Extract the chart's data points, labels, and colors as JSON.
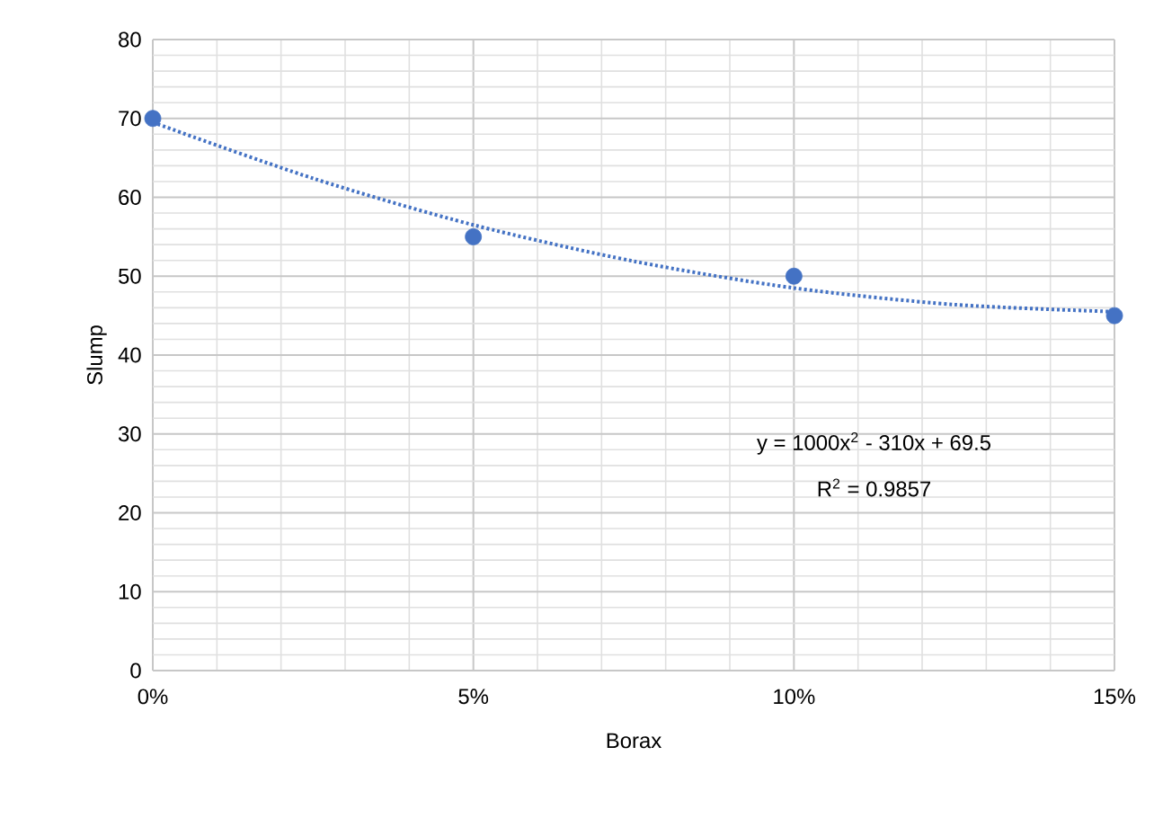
{
  "chart_data": {
    "type": "scatter",
    "xlabel": "Borax",
    "ylabel": "Slump",
    "x": [
      0,
      0.05,
      0.1,
      0.15
    ],
    "series": [
      {
        "type": "scatter",
        "color": "#4472c4",
        "marker": "circle",
        "values": [
          70,
          55,
          50,
          45
        ]
      },
      {
        "type": "line",
        "color": "#4472c4",
        "marker": "none",
        "line_style": "dotted",
        "x": [
          0,
          0.025,
          0.05,
          0.075,
          0.1,
          0.125,
          0.15
        ],
        "values": [
          69.5,
          62.4,
          56.5,
          51.9,
          48.5,
          46.4,
          45.5
        ]
      }
    ],
    "xlim": [
      0,
      0.15
    ],
    "ylim": [
      0,
      80
    ],
    "xticks": [
      {
        "value": 0,
        "label": "0%"
      },
      {
        "value": 0.05,
        "label": "5%"
      },
      {
        "value": 0.1,
        "label": "10%"
      },
      {
        "value": 0.15,
        "label": "15%"
      }
    ],
    "yticks": [
      0,
      10,
      20,
      30,
      40,
      50,
      60,
      70,
      80
    ],
    "grid": true,
    "annotations": [
      "y = 1000x$^{2}$ - 310x + 69.5",
      "R$^{2}$ = 0.9857"
    ]
  }
}
